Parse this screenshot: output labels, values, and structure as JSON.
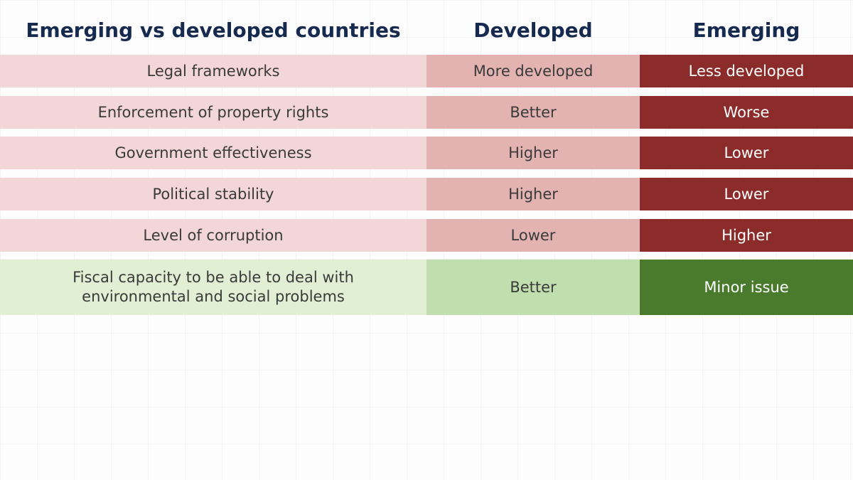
{
  "table": {
    "headers": [
      "Emerging vs developed countries",
      "Developed",
      "Emerging"
    ],
    "rows": [
      {
        "criterion": "Legal frameworks",
        "developed": "More developed",
        "emerging": "Less developed"
      },
      {
        "criterion": "Enforcement of property rights",
        "developed": "Better",
        "emerging": "Worse"
      },
      {
        "criterion": "Government effectiveness",
        "developed": "Higher",
        "emerging": "Lower"
      },
      {
        "criterion": "Political stability",
        "developed": "Higher",
        "emerging": "Lower"
      },
      {
        "criterion": "Level of corruption",
        "developed": "Lower",
        "emerging": "Higher"
      },
      {
        "criterion": "Fiscal capacity to be able to deal with environmental and social problems",
        "developed": "Better",
        "emerging": "Minor issue"
      }
    ]
  },
  "colors": {
    "header_text": "#16294f",
    "red_light": "#f3d6d8",
    "red_mid": "#e2b3b1",
    "red_dark": "#8b2c2a",
    "green_light": "#e1efd5",
    "green_mid": "#c1dfae",
    "green_dark": "#4a7a2c"
  }
}
